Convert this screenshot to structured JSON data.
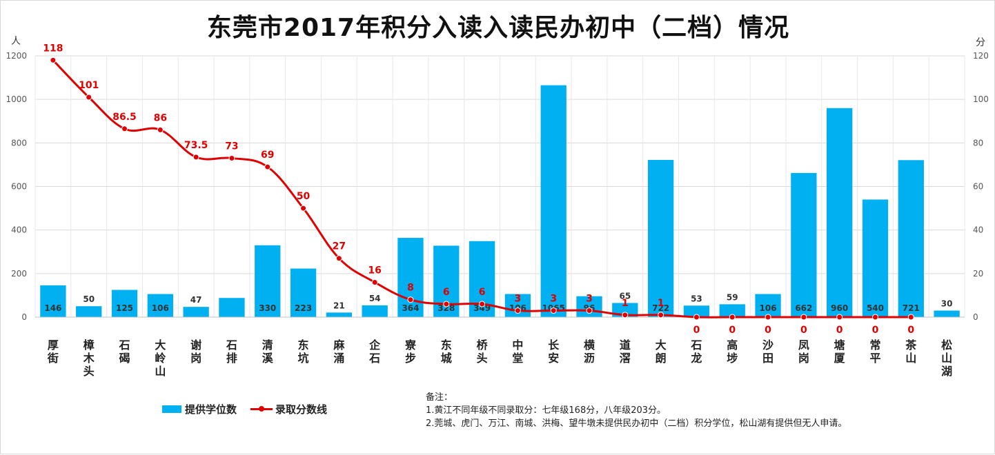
{
  "chart_data": {
    "type": "bar",
    "title": "东莞市2017年积分入读入读民办初中（二档）情况",
    "y_left_unit": "人",
    "y_right_unit": "分",
    "y_left_ticks": [
      "0",
      "200",
      "400",
      "600",
      "800",
      "1000",
      "1200"
    ],
    "y_right_ticks": [
      "0",
      "20",
      "40",
      "60",
      "80",
      "100",
      "120"
    ],
    "ylim_left": [
      0,
      1200
    ],
    "ylim_right": [
      0,
      120
    ],
    "categories": [
      "厚街",
      "樟木头",
      "石碣",
      "大岭山",
      "谢岗",
      "石排",
      "清溪",
      "东坑",
      "麻涌",
      "企石",
      "寮步",
      "东城",
      "桥头",
      "中堂",
      "长安",
      "横沥",
      "道滘",
      "大朗",
      "石龙",
      "高埗",
      "沙田",
      "凤岗",
      "塘厦",
      "常平",
      "茶山",
      "松山湖"
    ],
    "series": [
      {
        "name": "提供学位数",
        "kind": "bar",
        "axis": "left",
        "color": "#00B0F0",
        "values": [
          146,
          50,
          125,
          106,
          47,
          88,
          330,
          223,
          21,
          54,
          364,
          328,
          349,
          106,
          1065,
          96,
          65,
          722,
          53,
          59,
          106,
          662,
          960,
          540,
          721,
          30
        ],
        "labels": [
          "146",
          "50",
          "125",
          "106",
          "47",
          "",
          "330",
          "223",
          "21",
          "54",
          "364",
          "328",
          "349",
          "106",
          "1065",
          "96",
          "65",
          "722",
          "53",
          "59",
          "106",
          "662",
          "960",
          "540",
          "721",
          "30"
        ]
      },
      {
        "name": "录取分数线",
        "kind": "line",
        "axis": "right",
        "color": "#E00000",
        "values": [
          118,
          101,
          86.5,
          86,
          73.5,
          73,
          69,
          50,
          27,
          16,
          8,
          6,
          6,
          3,
          3,
          3,
          1,
          1,
          0,
          0,
          0,
          0,
          0,
          0,
          0,
          null
        ],
        "labels": [
          "118",
          "101",
          "86.5",
          "86",
          "73.5",
          "73",
          "69",
          "50",
          "27",
          "16",
          "8",
          "6",
          "6",
          "3",
          "3",
          "3",
          "1",
          "1",
          "0",
          "0",
          "0",
          "0",
          "0",
          "0",
          "0",
          ""
        ]
      }
    ],
    "grid": "horizontal",
    "legend_position": "bottom-left"
  },
  "legend": {
    "bar_label": "提供学位数",
    "line_label": "录取分数线"
  },
  "notes": {
    "heading": "备注：",
    "line1": "1.黄江不同年级不同录取分：七年级168分，八年级203分。",
    "line2": "2.莞城、虎门、万江、南城、洪梅、望牛墩未提供民办初中（二档）积分学位，松山湖有提供但无人申请。"
  },
  "colors": {
    "bar": "#00B0F0",
    "line": "#E00000",
    "grid": "#d9d9d9"
  }
}
